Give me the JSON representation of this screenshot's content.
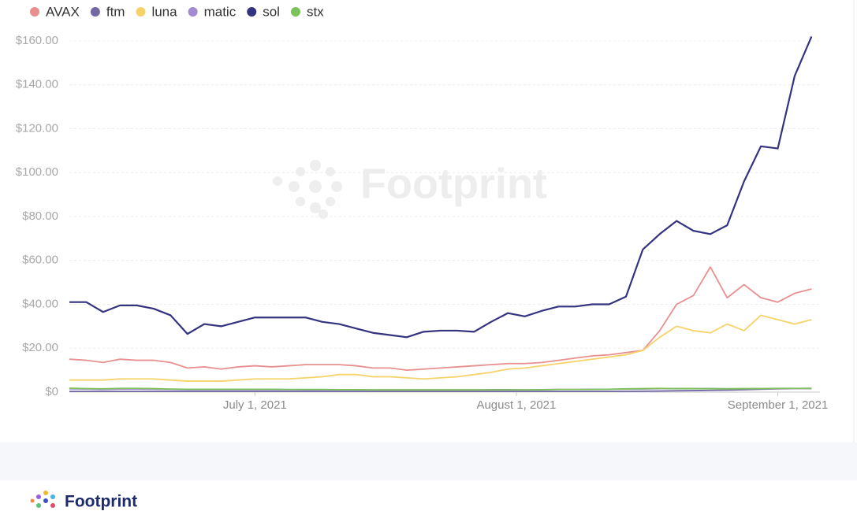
{
  "chart_data": {
    "type": "line",
    "watermark": "Footprint",
    "x": [
      "2021-06-09",
      "2021-06-11",
      "2021-06-13",
      "2021-06-15",
      "2021-06-17",
      "2021-06-19",
      "2021-06-21",
      "2021-06-23",
      "2021-06-25",
      "2021-06-27",
      "2021-06-29",
      "2021-07-01",
      "2021-07-03",
      "2021-07-05",
      "2021-07-07",
      "2021-07-09",
      "2021-07-11",
      "2021-07-13",
      "2021-07-15",
      "2021-07-17",
      "2021-07-19",
      "2021-07-21",
      "2021-07-23",
      "2021-07-25",
      "2021-07-27",
      "2021-07-29",
      "2021-07-31",
      "2021-08-02",
      "2021-08-04",
      "2021-08-06",
      "2021-08-08",
      "2021-08-10",
      "2021-08-12",
      "2021-08-14",
      "2021-08-16",
      "2021-08-18",
      "2021-08-20",
      "2021-08-22",
      "2021-08-24",
      "2021-08-26",
      "2021-08-28",
      "2021-08-30",
      "2021-09-01",
      "2021-09-03",
      "2021-09-05"
    ],
    "xlim": [
      "2021-06-09",
      "2021-09-06"
    ],
    "xticks": [
      {
        "value": "2021-07-01",
        "label": "July 1, 2021"
      },
      {
        "value": "2021-08-01",
        "label": "August 1, 2021"
      },
      {
        "value": "2021-09-01",
        "label": "September 1, 2021"
      }
    ],
    "ylim": [
      0,
      160
    ],
    "yticks": [
      {
        "value": 0,
        "label": "$0"
      },
      {
        "value": 20,
        "label": "$20.00"
      },
      {
        "value": 40,
        "label": "$40.00"
      },
      {
        "value": 60,
        "label": "$60.00"
      },
      {
        "value": 80,
        "label": "$80.00"
      },
      {
        "value": 100,
        "label": "$100.00"
      },
      {
        "value": 120,
        "label": "$120.00"
      },
      {
        "value": 140,
        "label": "$140.00"
      },
      {
        "value": 160,
        "label": "$160.00"
      }
    ],
    "grid": true,
    "legend": "top-left",
    "series": [
      {
        "name": "AVAX",
        "color": "#e8908f",
        "values": [
          15,
          14.5,
          13.5,
          15,
          14.5,
          14.5,
          13.5,
          11,
          11.5,
          10.5,
          11.5,
          12,
          11.5,
          12,
          12.5,
          12.5,
          12.5,
          12,
          11,
          11,
          10,
          10.5,
          11,
          11.5,
          12,
          12.5,
          13,
          13,
          13.5,
          14.5,
          15.5,
          16.5,
          17,
          18,
          19,
          28,
          40,
          44,
          57,
          43,
          49,
          43,
          41,
          45,
          47
        ]
      },
      {
        "name": "ftm",
        "color": "#7467a6",
        "values": [
          0.3,
          0.3,
          0.3,
          0.3,
          0.3,
          0.3,
          0.3,
          0.3,
          0.3,
          0.3,
          0.3,
          0.3,
          0.3,
          0.3,
          0.3,
          0.3,
          0.3,
          0.3,
          0.3,
          0.3,
          0.3,
          0.3,
          0.3,
          0.3,
          0.3,
          0.3,
          0.3,
          0.3,
          0.3,
          0.3,
          0.3,
          0.3,
          0.3,
          0.35,
          0.4,
          0.5,
          0.6,
          0.7,
          0.8,
          0.9,
          1.1,
          1.3,
          1.5,
          1.6,
          1.7
        ]
      },
      {
        "name": "luna",
        "color": "#f5d36a",
        "values": [
          5.5,
          5.5,
          5.5,
          6,
          6,
          6,
          5.5,
          5,
          5,
          5,
          5.5,
          6,
          6,
          6,
          6.5,
          7,
          8,
          8,
          7,
          7,
          6.5,
          6,
          6.5,
          7,
          8,
          9,
          10.5,
          11,
          12,
          13,
          14,
          15,
          16,
          17,
          19,
          25,
          30,
          28,
          27,
          31,
          28,
          35,
          33,
          31,
          33
        ]
      },
      {
        "name": "matic",
        "color": "#a48ad0",
        "values": [
          1.5,
          1.4,
          1.2,
          1.4,
          1.4,
          1.3,
          1.2,
          1.1,
          1.1,
          1.1,
          1.1,
          1.1,
          1.1,
          1.1,
          1.0,
          1.0,
          1.0,
          1.0,
          1.0,
          1.0,
          1.0,
          1.0,
          1.0,
          1.0,
          1.0,
          1.1,
          1.1,
          1.0,
          1.1,
          1.2,
          1.2,
          1.3,
          1.3,
          1.4,
          1.4,
          1.6,
          1.6,
          1.6,
          1.6,
          1.5,
          1.5,
          1.6,
          1.6,
          1.6,
          1.6
        ]
      },
      {
        "name": "sol",
        "color": "#33337f",
        "values": [
          41,
          41,
          36.5,
          39.5,
          39.5,
          38,
          35,
          26.5,
          31,
          30,
          32,
          34,
          34,
          34,
          34,
          32,
          31,
          29,
          27,
          26,
          25,
          27.5,
          28,
          28,
          27.5,
          32,
          36,
          34.5,
          37,
          39,
          39,
          40,
          40,
          43.5,
          65,
          72,
          78,
          73.5,
          72,
          76,
          96,
          112,
          111,
          144,
          162
        ]
      },
      {
        "name": "stx",
        "color": "#7cc15a",
        "values": [
          1.8,
          1.6,
          1.5,
          1.7,
          1.7,
          1.6,
          1.4,
          1.3,
          1.3,
          1.3,
          1.3,
          1.3,
          1.3,
          1.2,
          1.2,
          1.2,
          1.1,
          1.1,
          1.0,
          1.0,
          1.0,
          1.0,
          1.0,
          1.0,
          1.0,
          1.0,
          1.0,
          1.0,
          1.1,
          1.2,
          1.2,
          1.2,
          1.3,
          1.5,
          1.6,
          1.7,
          1.6,
          1.6,
          1.6,
          1.5,
          1.6,
          1.6,
          1.7,
          1.7,
          1.7
        ]
      }
    ]
  },
  "footer": {
    "brand": "Footprint"
  }
}
